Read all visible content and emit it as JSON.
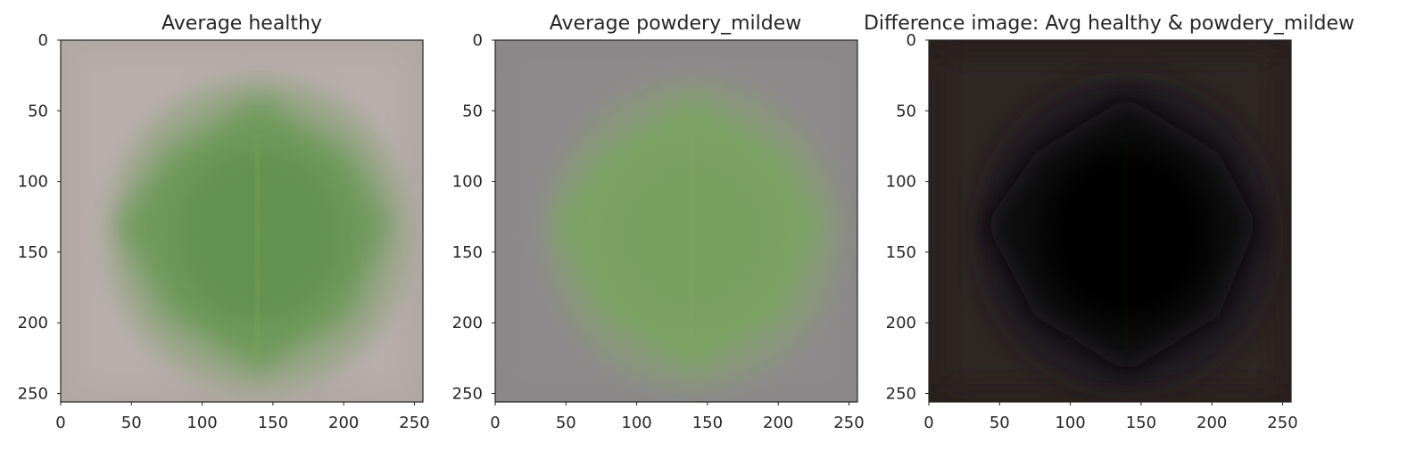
{
  "chart_data": [
    {
      "type": "image",
      "title": "Average healthy",
      "xlim": [
        0,
        256
      ],
      "ylim": [
        256,
        0
      ],
      "xticks": [
        0,
        50,
        100,
        150,
        200,
        250
      ],
      "yticks": [
        0,
        50,
        100,
        150,
        200,
        250
      ],
      "colors": {
        "background": "#b9aeac",
        "background_edge": "#b1a7a3",
        "leaf_halo": "#8fa37e",
        "leaf": "#6f9a5c",
        "leaf_core": "#63924f",
        "vein": "#86ac5e"
      }
    },
    {
      "type": "image",
      "title": "Average powdery_mildew",
      "xlim": [
        0,
        256
      ],
      "ylim": [
        256,
        0
      ],
      "xticks": [
        0,
        50,
        100,
        150,
        200,
        250
      ],
      "yticks": [
        0,
        50,
        100,
        150,
        200,
        250
      ],
      "colors": {
        "background": "#8e8a8c",
        "background_edge": "#8a8788",
        "leaf_halo": "#889a79",
        "leaf": "#7ba264",
        "leaf_core": "#78a05e",
        "vein": "#8aa96e"
      }
    },
    {
      "type": "image",
      "title": "Difference image: Avg healthy & powdery_mildew",
      "xlim": [
        0,
        256
      ],
      "ylim": [
        256,
        0
      ],
      "xticks": [
        0,
        50,
        100,
        150,
        200,
        250
      ],
      "yticks": [
        0,
        50,
        100,
        150,
        200,
        250
      ],
      "colors": {
        "background": "#2e2522",
        "background_edge": "#2a211e",
        "leaf_halo": "#1c1820",
        "leaf": "#0a0708",
        "leaf_core": "#050304",
        "vein": "#11240f"
      }
    }
  ]
}
